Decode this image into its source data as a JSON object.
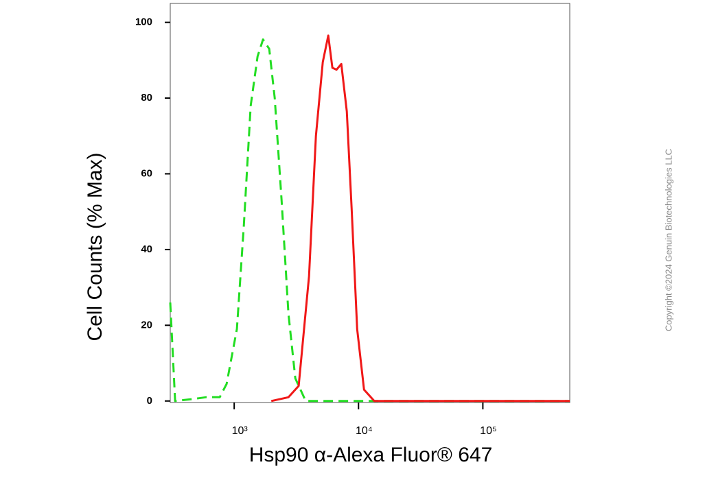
{
  "chart_data": {
    "type": "line",
    "x_scale": "log",
    "y_label": "Cell Counts (% Max)",
    "x_label": "Hsp90 α-Alexa Fluor® 647",
    "copyright": "Copyright ©2024 Genuin Biotechnologies LLC",
    "xlim": [
      306,
      500000
    ],
    "ylim": [
      -0.4,
      105
    ],
    "xticks": [
      {
        "value": 1000,
        "label": "10³"
      },
      {
        "value": 10000,
        "label": "10⁴"
      },
      {
        "value": 100000,
        "label": "10⁵"
      }
    ],
    "yticks": [
      0,
      20,
      40,
      60,
      80,
      100
    ],
    "series": [
      {
        "color": "#22dd22",
        "dashed": true,
        "x": [
          306,
          335,
          460,
          593,
          765,
          869,
          1052,
          1194,
          1358,
          1542,
          1707,
          1914,
          2118,
          2405,
          2731,
          3102,
          3758,
          500000
        ],
        "values": [
          26,
          0,
          0.5,
          1,
          1,
          4.5,
          19,
          46,
          78,
          91,
          95.5,
          93,
          80,
          53,
          23,
          6,
          0,
          0
        ]
      },
      {
        "color": "#f01818",
        "dashed": false,
        "x": [
          1987,
          2731,
          3303,
          4000,
          4541,
          5160,
          5714,
          6166,
          6653,
          7270,
          8053,
          8803,
          9750,
          11070,
          13390,
          500000
        ],
        "values": [
          0,
          1,
          4,
          33,
          70,
          89.5,
          96.5,
          88,
          87.5,
          89,
          76.5,
          51,
          19,
          3,
          0,
          0
        ]
      }
    ]
  }
}
